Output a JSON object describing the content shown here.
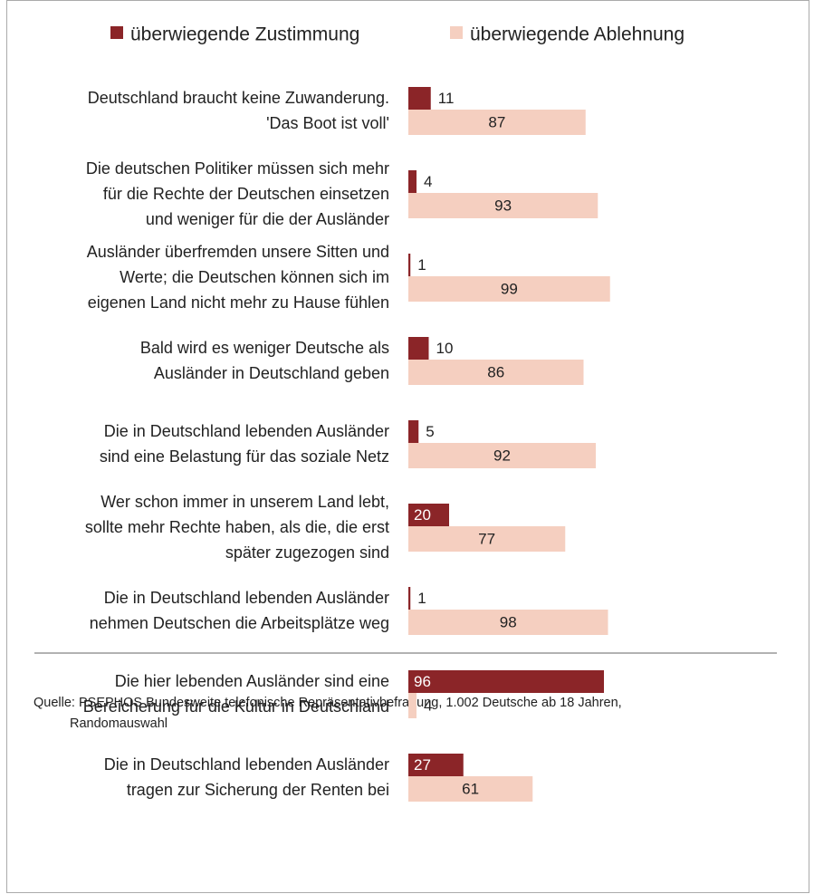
{
  "chart_data": {
    "type": "bar",
    "orientation": "horizontal",
    "categories": [
      [
        "Deutschland braucht keine Zuwanderung.",
        "'Das Boot ist voll'"
      ],
      [
        "Die deutschen Politiker müssen sich mehr",
        "für die Rechte der Deutschen einsetzen",
        "und weniger für die der Ausländer"
      ],
      [
        "Ausländer überfremden unsere Sitten und",
        "Werte; die Deutschen können sich im",
        "eigenen Land nicht mehr zu Hause fühlen"
      ],
      [
        "Bald wird es weniger Deutsche als",
        "Ausländer in Deutschland geben"
      ],
      [
        "Die in Deutschland lebenden Ausländer",
        "sind eine Belastung für das soziale Netz"
      ],
      [
        "Wer schon immer in unserem Land lebt,",
        "sollte mehr Rechte haben, als die, die erst",
        "später zugezogen sind"
      ],
      [
        "Die in Deutschland lebenden Ausländer",
        "nehmen Deutschen die Arbeitsplätze weg"
      ],
      [
        "Die hier lebenden Ausländer sind eine",
        "Bereicherung für die Kultur in Deutschland"
      ],
      [
        "Die in Deutschland lebenden Ausländer",
        "tragen zur Sicherung der Renten bei"
      ]
    ],
    "series": [
      {
        "name": "überwiegende Zustimmung",
        "color": "#8b2528",
        "values": [
          11,
          4,
          1,
          10,
          5,
          20,
          1,
          96,
          27
        ]
      },
      {
        "name": "überwiegende Ablehnung",
        "color": "#f5cfc0",
        "values": [
          87,
          93,
          99,
          86,
          92,
          77,
          98,
          4,
          61
        ]
      }
    ],
    "xlim": [
      0,
      100
    ],
    "source": [
      "Quelle: PSEPHOS Bundesweite telefonische Repräsentativbefragung, 1.002 Deutsche ab 18 Jahren,",
      "Randomauswahl"
    ]
  }
}
